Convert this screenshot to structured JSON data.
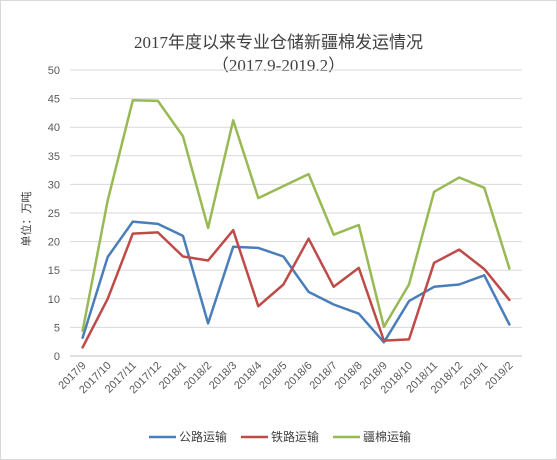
{
  "chart_data": {
    "type": "line",
    "title": "2017年度以来专业仓储新疆棉发运情况",
    "subtitle": "（2017.9-2019.2）",
    "ylabel": "单位：万吨",
    "xlabel": "",
    "ylim": [
      0,
      50
    ],
    "yticks": [
      0,
      5,
      10,
      15,
      20,
      25,
      30,
      35,
      40,
      45,
      50
    ],
    "grid": true,
    "legend_position": "bottom",
    "categories": [
      "2017/9",
      "2017/10",
      "2017/11",
      "2017/12",
      "2018/1",
      "2018/2",
      "2018/3",
      "2018/4",
      "2018/5",
      "2018/6",
      "2018/7",
      "2018/8",
      "2018/9",
      "2018/10",
      "2018/11",
      "2018/12",
      "2019/1",
      "2019/2"
    ],
    "series": [
      {
        "name": "公路运输",
        "color": "#4a7ebb",
        "values": [
          3.2,
          17.3,
          23.5,
          23.1,
          21.0,
          5.7,
          19.1,
          18.9,
          17.4,
          11.2,
          9.0,
          7.4,
          2.4,
          9.6,
          12.1,
          12.5,
          14.1,
          5.5
        ]
      },
      {
        "name": "铁路运输",
        "color": "#be4b48",
        "values": [
          1.5,
          10.0,
          21.4,
          21.6,
          17.4,
          16.7,
          22.0,
          8.7,
          12.5,
          20.5,
          12.1,
          15.4,
          2.7,
          2.9,
          16.3,
          18.6,
          15.2,
          9.8
        ]
      },
      {
        "name": "疆棉运输",
        "color": "#98b954",
        "values": [
          4.4,
          27.2,
          44.7,
          44.6,
          38.4,
          22.4,
          41.2,
          27.6,
          29.7,
          31.8,
          21.2,
          22.9,
          5.1,
          12.5,
          28.7,
          31.2,
          29.4,
          15.3
        ]
      }
    ]
  }
}
